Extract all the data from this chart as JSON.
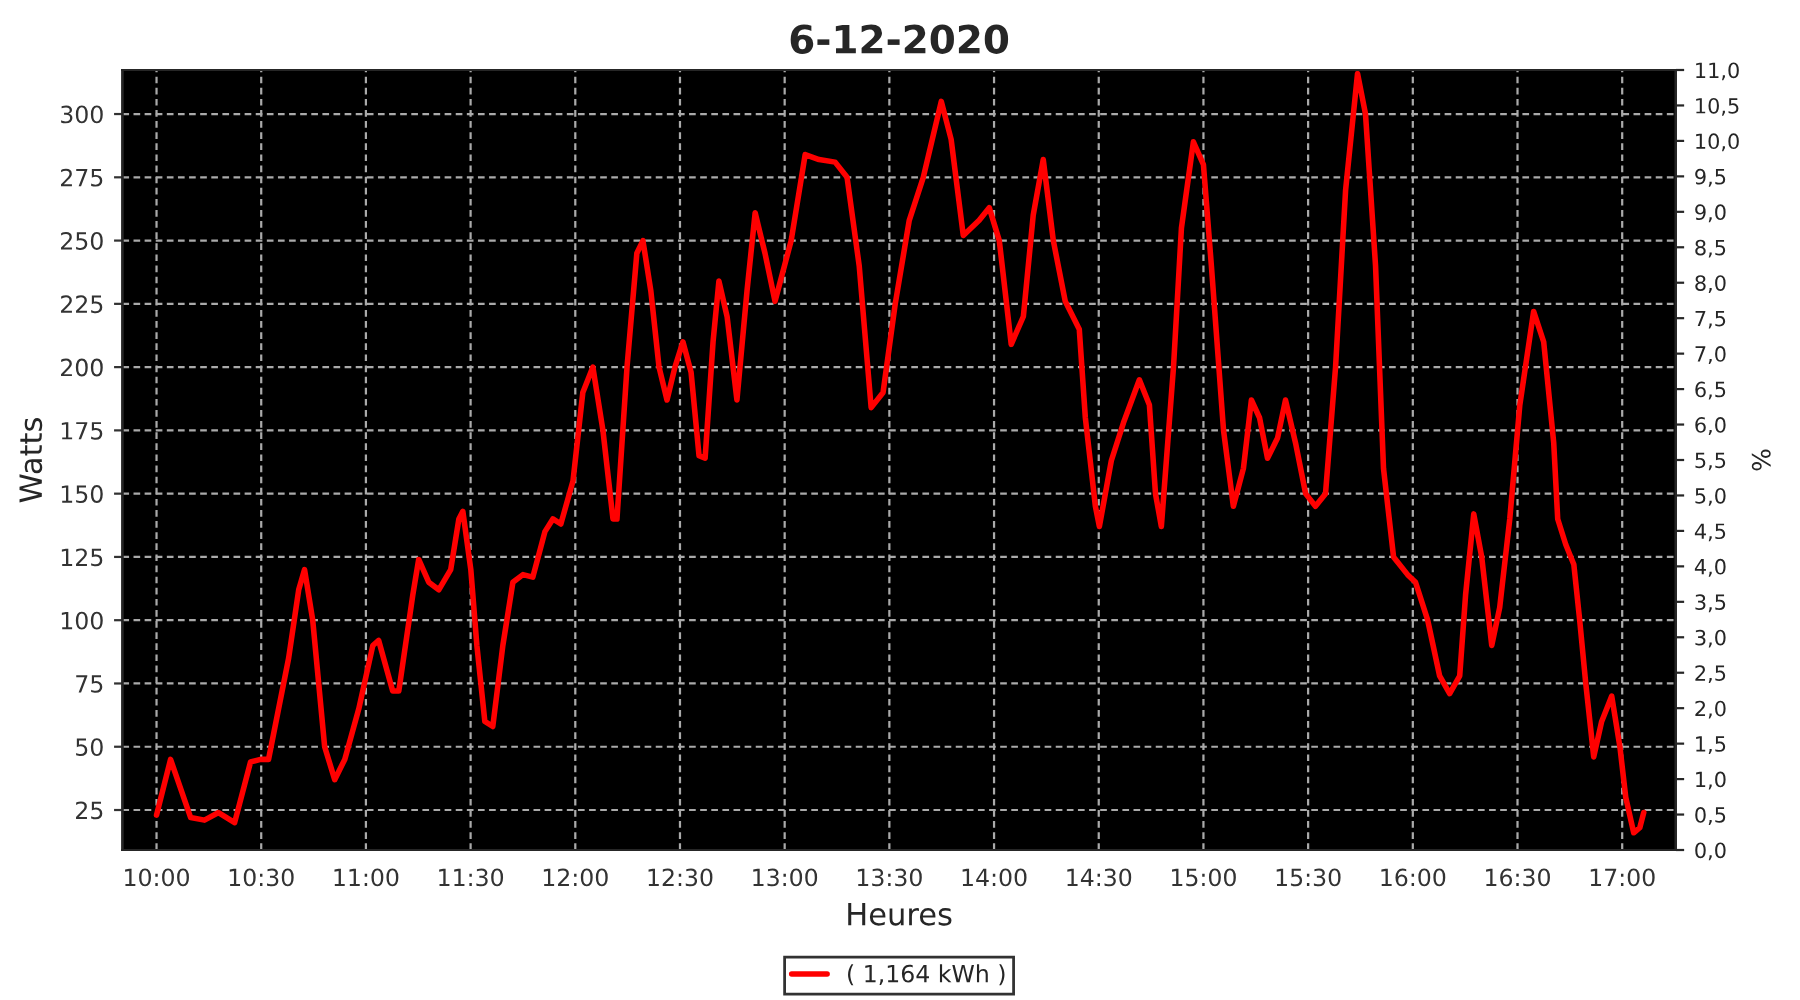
{
  "chart_data": {
    "type": "line",
    "title": "6-12-2020",
    "xlabel": "Heures",
    "ylabel": "Watts",
    "y2label": "%",
    "xlim": [
      9.837,
      17.256
    ],
    "ylim": [
      9.2,
      317.4
    ],
    "y2lim": [
      0,
      11
    ],
    "xticks": [
      {
        "value": 10,
        "label": "10:00"
      },
      {
        "value": 10.5,
        "label": "10:30"
      },
      {
        "value": 11,
        "label": "11:00"
      },
      {
        "value": 11.5,
        "label": "11:30"
      },
      {
        "value": 12,
        "label": "12:00"
      },
      {
        "value": 12.5,
        "label": "12:30"
      },
      {
        "value": 13,
        "label": "13:00"
      },
      {
        "value": 13.5,
        "label": "13:30"
      },
      {
        "value": 14,
        "label": "14:00"
      },
      {
        "value": 14.5,
        "label": "14:30"
      },
      {
        "value": 15,
        "label": "15:00"
      },
      {
        "value": 15.5,
        "label": "15:30"
      },
      {
        "value": 16,
        "label": "16:00"
      },
      {
        "value": 16.5,
        "label": "16:30"
      },
      {
        "value": 17,
        "label": "17:00"
      }
    ],
    "yticks": [
      25,
      50,
      75,
      100,
      125,
      150,
      175,
      200,
      225,
      250,
      275,
      300
    ],
    "y2ticks": [
      {
        "value": 0,
        "label": "0,0"
      },
      {
        "value": 0.5,
        "label": "0,5"
      },
      {
        "value": 1,
        "label": "1,0"
      },
      {
        "value": 1.5,
        "label": "1,5"
      },
      {
        "value": 2,
        "label": "2,0"
      },
      {
        "value": 2.5,
        "label": "2,5"
      },
      {
        "value": 3,
        "label": "3,0"
      },
      {
        "value": 3.5,
        "label": "3,5"
      },
      {
        "value": 4,
        "label": "4,0"
      },
      {
        "value": 4.5,
        "label": "4,5"
      },
      {
        "value": 5,
        "label": "5,0"
      },
      {
        "value": 5.5,
        "label": "5,5"
      },
      {
        "value": 6,
        "label": "6,0"
      },
      {
        "value": 6.5,
        "label": "6,5"
      },
      {
        "value": 7,
        "label": "7,0"
      },
      {
        "value": 7.5,
        "label": "7,5"
      },
      {
        "value": 8,
        "label": "8,0"
      },
      {
        "value": 8.5,
        "label": "8,5"
      },
      {
        "value": 9,
        "label": "9,0"
      },
      {
        "value": 9.5,
        "label": "9,5"
      },
      {
        "value": 10,
        "label": "10,0"
      },
      {
        "value": 10.5,
        "label": "10,5"
      },
      {
        "value": 11,
        "label": "11,0"
      }
    ],
    "grid": true,
    "legend": "bottom",
    "marker": "none",
    "line_style": "solid",
    "series": [
      {
        "name": "( 1,164 kWh )",
        "color": "#ff0000",
        "x": [
          10.0,
          10.067,
          10.163,
          10.229,
          10.296,
          10.373,
          10.449,
          10.497,
          10.535,
          10.631,
          10.679,
          10.707,
          10.746,
          10.803,
          10.851,
          10.899,
          10.966,
          11.033,
          11.061,
          11.128,
          11.157,
          11.224,
          11.252,
          11.3,
          11.348,
          11.405,
          11.444,
          11.463,
          11.501,
          11.53,
          11.568,
          11.606,
          11.654,
          11.702,
          11.75,
          11.797,
          11.855,
          11.893,
          11.931,
          11.989,
          12.036,
          12.084,
          12.132,
          12.18,
          12.199,
          12.247,
          12.294,
          12.323,
          12.361,
          12.4,
          12.438,
          12.476,
          12.514,
          12.553,
          12.591,
          12.62,
          12.658,
          12.686,
          12.725,
          12.772,
          12.82,
          12.859,
          12.906,
          12.954,
          13.031,
          13.098,
          13.164,
          13.241,
          13.298,
          13.356,
          13.413,
          13.47,
          13.528,
          13.595,
          13.662,
          13.748,
          13.795,
          13.853,
          13.929,
          13.977,
          14.025,
          14.082,
          14.14,
          14.187,
          14.235,
          14.283,
          14.34,
          14.407,
          14.436,
          14.484,
          14.503,
          14.56,
          14.618,
          14.694,
          14.742,
          14.771,
          14.799,
          14.857,
          14.895,
          14.952,
          15.0,
          15.038,
          15.096,
          15.143,
          15.191,
          15.229,
          15.268,
          15.306,
          15.354,
          15.392,
          15.44,
          15.488,
          15.535,
          15.583,
          15.631,
          15.679,
          15.736,
          15.774,
          15.822,
          15.86,
          15.908,
          15.975,
          16.013,
          16.071,
          16.128,
          16.176,
          16.224,
          16.252,
          16.291,
          16.329,
          16.377,
          16.415,
          16.463,
          16.511,
          16.577,
          16.625,
          16.673,
          16.692,
          16.73,
          16.769,
          16.797,
          16.826,
          16.864,
          16.902,
          16.95,
          16.989,
          17.017,
          17.055,
          17.084,
          17.103
        ],
        "values": [
          23,
          45,
          22,
          21,
          24,
          20,
          44,
          45,
          45,
          85,
          112,
          120,
          100,
          50,
          37,
          45,
          65,
          90,
          92,
          72,
          72,
          110,
          124,
          115,
          112,
          120,
          140,
          143,
          120,
          90,
          60,
          58,
          90,
          115,
          118,
          117,
          135,
          140,
          138,
          155,
          190,
          200,
          175,
          140,
          140,
          200,
          245,
          250,
          230,
          200,
          187,
          200,
          210,
          198,
          165,
          164,
          210,
          234,
          220,
          187,
          230,
          261,
          245,
          226,
          250,
          284,
          282,
          281,
          275,
          240,
          184,
          190,
          225,
          258,
          275,
          305,
          290,
          252,
          258,
          263,
          250,
          209,
          220,
          260,
          282,
          250,
          226,
          215,
          180,
          145,
          137,
          163,
          178,
          195,
          185,
          150,
          137,
          200,
          255,
          289,
          280,
          240,
          175,
          145,
          160,
          187,
          180,
          164,
          172,
          187,
          170,
          150,
          145,
          150,
          200,
          270,
          316,
          300,
          240,
          160,
          125,
          118,
          115,
          100,
          78,
          71,
          78,
          110,
          142,
          125,
          90,
          105,
          140,
          185,
          222,
          210,
          170,
          140,
          130,
          122,
          100,
          75,
          46,
          60,
          70,
          50,
          30,
          16,
          18,
          24
        ]
      }
    ]
  }
}
